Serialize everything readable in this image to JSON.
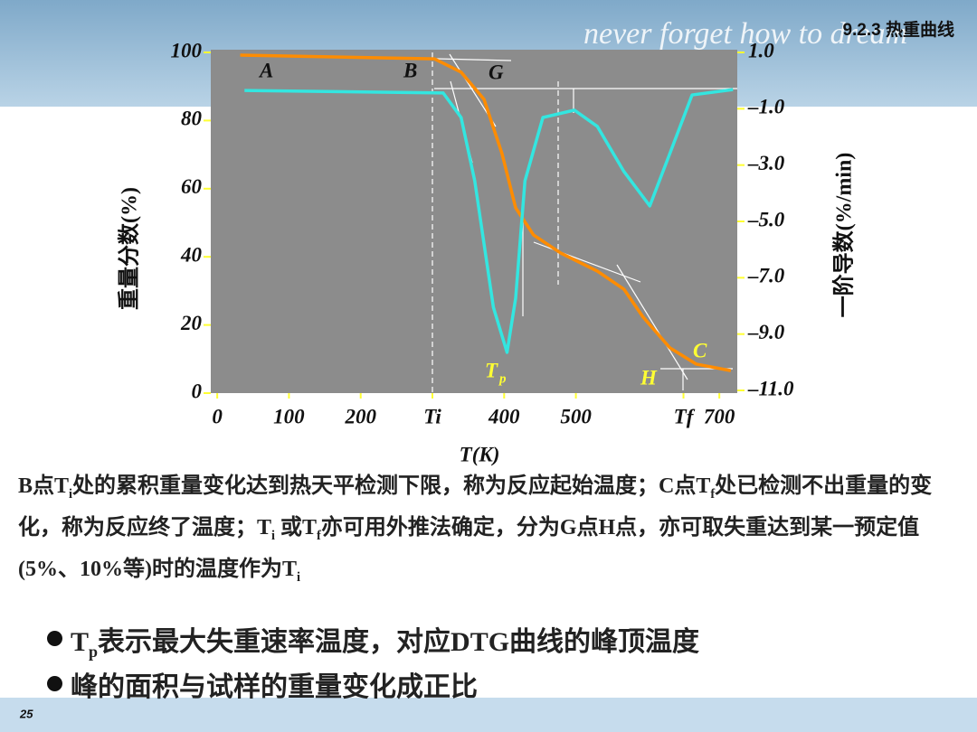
{
  "header": {
    "motto": "never forget how to dream",
    "section": "9.2.3 热重曲线"
  },
  "chart_data": {
    "type": "line",
    "x_label": "T(K)",
    "y_label": "重量分数(%)",
    "y2_label": "一阶导数(%/min)",
    "xlim": [
      -9,
      725
    ],
    "ylim": [
      0,
      100
    ],
    "y2lim": [
      -11,
      1
    ],
    "xticks": [
      0,
      100,
      200,
      {
        "value": 300,
        "label": "Ti"
      },
      400,
      500,
      {
        "value": 650,
        "label": "Tf"
      },
      700
    ],
    "yticks": [
      0,
      20,
      40,
      60,
      80,
      100
    ],
    "y2ticks": [
      {
        "value": 1,
        "label": "1.0"
      },
      {
        "value": -1,
        "label": "–1.0"
      },
      {
        "value": -3,
        "label": "–3.0"
      },
      {
        "value": -5,
        "label": "–5.0"
      },
      {
        "value": -7,
        "label": "–7.0"
      },
      {
        "value": -9,
        "label": "–9.0"
      },
      {
        "value": -11,
        "label": "–11.0"
      }
    ],
    "series": [
      {
        "color": "#ff8c00",
        "x": [
          32,
          303,
          340,
          372,
          397,
          416,
          441,
          479,
          530,
          567,
          593,
          631,
          668,
          716
        ],
        "values": [
          99.2,
          98.1,
          94.2,
          86.2,
          70.3,
          54.4,
          46.4,
          41.1,
          35.8,
          30.5,
          22.5,
          13.3,
          8.5,
          6.6
        ]
      },
      {
        "color": "#33e6e0",
        "axis": "y2",
        "x": [
          38,
          315,
          340,
          359,
          385,
          404,
          416,
          429,
          454,
          498,
          530,
          567,
          603,
          631,
          662,
          719
        ],
        "values": [
          -0.35,
          -0.44,
          -1.31,
          -3.56,
          -8.05,
          -9.65,
          -7.73,
          -3.56,
          -1.31,
          -1.05,
          -1.63,
          -3.23,
          -4.45,
          -2.59,
          -0.51,
          -0.32
        ]
      }
    ],
    "annotations": {
      "A": "A",
      "B": "B",
      "G": "G",
      "C": "C",
      "H": "H",
      "Tp": [
        "T",
        "p"
      ]
    }
  },
  "body": {
    "paragraph": [
      "B点T",
      "i",
      "处的累积重量变化达到热天平检测下限，称为反应起始温度；C点T",
      "f",
      "处已检测不出重量的变化，称为反应终了温度；T",
      "i",
      " 或T",
      "f",
      "亦可用外推法确定，分为G点H点，亦可取失重达到某一预定值(5%、10%等)时的温度作为T",
      "i"
    ],
    "bullets": [
      [
        "T",
        "p",
        "表示最大失重速率温度，对应DTG曲线的峰顶温度"
      ],
      [
        "峰的面积与试样的重量变化成正比"
      ]
    ]
  },
  "footer": {
    "page": "25"
  }
}
